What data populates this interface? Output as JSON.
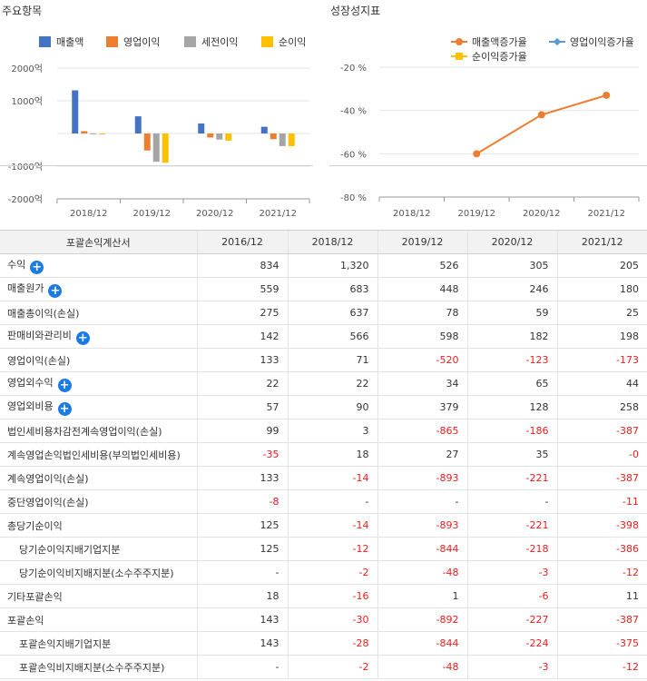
{
  "chart_data": [
    {
      "type": "bar",
      "title": "주요항목",
      "categories": [
        "2018/12",
        "2019/12",
        "2020/12",
        "2021/12"
      ],
      "series": [
        {
          "name": "매출액",
          "color": "#4472c4",
          "values": [
            1320,
            526,
            305,
            205
          ]
        },
        {
          "name": "영업이익",
          "color": "#ed7d31",
          "values": [
            71,
            -520,
            -123,
            -173
          ]
        },
        {
          "name": "세전이익",
          "color": "#a5a5a5",
          "values": [
            3,
            -865,
            -186,
            -387
          ]
        },
        {
          "name": "순이익",
          "color": "#ffc000",
          "values": [
            -14,
            -893,
            -221,
            -387
          ]
        }
      ],
      "ylim": [
        -2000,
        2000
      ],
      "yticks": [
        {
          "value": 2000,
          "label": "2000억"
        },
        {
          "value": 1000,
          "label": "1000억"
        },
        {
          "value": -1000,
          "label": "-1000억"
        },
        {
          "value": -2000,
          "label": "-2000억"
        }
      ],
      "legend": "top"
    },
    {
      "type": "line",
      "title": "성장성지표",
      "categories": [
        "2018/12",
        "2019/12",
        "2020/12",
        "2021/12"
      ],
      "series": [
        {
          "name": "매출액증가율",
          "color": "#ed7d31",
          "marker": "circle",
          "values": [
            null,
            -60,
            -42,
            -33
          ]
        },
        {
          "name": "영업이익증가율",
          "color": "#5b9bd5",
          "marker": "diamond",
          "values": [
            null,
            null,
            null,
            null
          ]
        },
        {
          "name": "순이익증가율",
          "color": "#ffc000",
          "marker": "square",
          "values": [
            null,
            null,
            null,
            null
          ]
        }
      ],
      "ylim": [
        -80,
        -20
      ],
      "yticks": [
        {
          "value": -20,
          "label": "-20 %"
        },
        {
          "value": -40,
          "label": "-40 %"
        },
        {
          "value": -60,
          "label": "-60 %"
        },
        {
          "value": -80,
          "label": "-80 %"
        }
      ],
      "legend": "top"
    }
  ],
  "table": {
    "header": [
      "포괄손익계산서",
      "2016/12",
      "2018/12",
      "2019/12",
      "2020/12",
      "2021/12"
    ],
    "rows": [
      {
        "label": "수익",
        "plus": true,
        "indent": false,
        "values": [
          "834",
          "1,320",
          "526",
          "305",
          "205"
        ]
      },
      {
        "label": "매출원가",
        "plus": true,
        "indent": false,
        "values": [
          "559",
          "683",
          "448",
          "246",
          "180"
        ]
      },
      {
        "label": "매출총이익(손실)",
        "plus": false,
        "indent": false,
        "values": [
          "275",
          "637",
          "78",
          "59",
          "25"
        ]
      },
      {
        "label": "판매비와관리비",
        "plus": true,
        "indent": false,
        "values": [
          "142",
          "566",
          "598",
          "182",
          "198"
        ]
      },
      {
        "label": "영업이익(손실)",
        "plus": false,
        "indent": false,
        "values": [
          "133",
          "71",
          "-520",
          "-123",
          "-173"
        ]
      },
      {
        "label": "영업외수익",
        "plus": true,
        "indent": false,
        "values": [
          "22",
          "22",
          "34",
          "65",
          "44"
        ]
      },
      {
        "label": "영업외비용",
        "plus": true,
        "indent": false,
        "values": [
          "57",
          "90",
          "379",
          "128",
          "258"
        ]
      },
      {
        "label": "법인세비용차감전계속영업이익(손실)",
        "plus": false,
        "indent": false,
        "values": [
          "99",
          "3",
          "-865",
          "-186",
          "-387"
        ]
      },
      {
        "label": "계속영업손익법인세비용(부의법인세비용)",
        "plus": false,
        "indent": false,
        "values": [
          "-35",
          "18",
          "27",
          "35",
          "-0"
        ]
      },
      {
        "label": "계속영업이익(손실)",
        "plus": false,
        "indent": false,
        "values": [
          "133",
          "-14",
          "-893",
          "-221",
          "-387"
        ]
      },
      {
        "label": "중단영업이익(손실)",
        "plus": false,
        "indent": false,
        "values": [
          "-8",
          "-",
          "-",
          "-",
          "-11"
        ]
      },
      {
        "label": "총당기순이익",
        "plus": false,
        "indent": false,
        "values": [
          "125",
          "-14",
          "-893",
          "-221",
          "-398"
        ]
      },
      {
        "label": "당기순이익지배기업지분",
        "plus": false,
        "indent": true,
        "values": [
          "125",
          "-12",
          "-844",
          "-218",
          "-386"
        ]
      },
      {
        "label": "당기순이익비지배지분(소수주주지분)",
        "plus": false,
        "indent": true,
        "values": [
          "-",
          "-2",
          "-48",
          "-3",
          "-12"
        ]
      },
      {
        "label": "기타포괄손익",
        "plus": false,
        "indent": false,
        "values": [
          "18",
          "-16",
          "1",
          "-6",
          "11"
        ]
      },
      {
        "label": "포괄손익",
        "plus": false,
        "indent": false,
        "values": [
          "143",
          "-30",
          "-892",
          "-227",
          "-387"
        ]
      },
      {
        "label": "포괄손익지배기업지분",
        "plus": false,
        "indent": true,
        "values": [
          "143",
          "-28",
          "-844",
          "-224",
          "-375"
        ]
      },
      {
        "label": "포괄손익비지배지분(소수주주지분)",
        "plus": false,
        "indent": true,
        "values": [
          "-",
          "-2",
          "-48",
          "-3",
          "-12"
        ]
      }
    ]
  }
}
